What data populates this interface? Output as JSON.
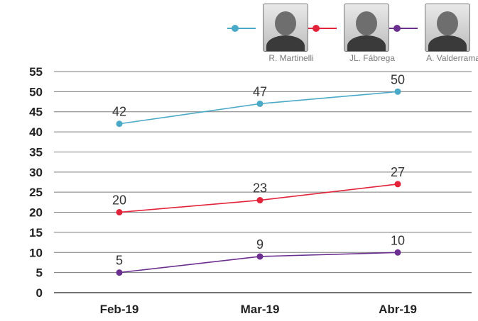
{
  "chart_data": {
    "type": "line",
    "categories": [
      "Feb-19",
      "Mar-19",
      "Abr-19"
    ],
    "series": [
      {
        "name": "R. Martinelli",
        "color": "#4aa9c6",
        "values": [
          42,
          47,
          50
        ]
      },
      {
        "name": "JL. Fábrega",
        "color": "#e2233a",
        "values": [
          20,
          23,
          27
        ]
      },
      {
        "name": "A. Valderrama",
        "color": "#6a2f8f",
        "values": [
          5,
          9,
          10
        ]
      }
    ],
    "ylim": [
      0,
      55
    ],
    "yticks": [
      0,
      5,
      10,
      15,
      20,
      25,
      30,
      35,
      40,
      45,
      50,
      55
    ],
    "grid": true,
    "legend_position": "top-right"
  },
  "legend_icons": [
    "portrait-photo",
    "portrait-photo",
    "portrait-photo"
  ]
}
